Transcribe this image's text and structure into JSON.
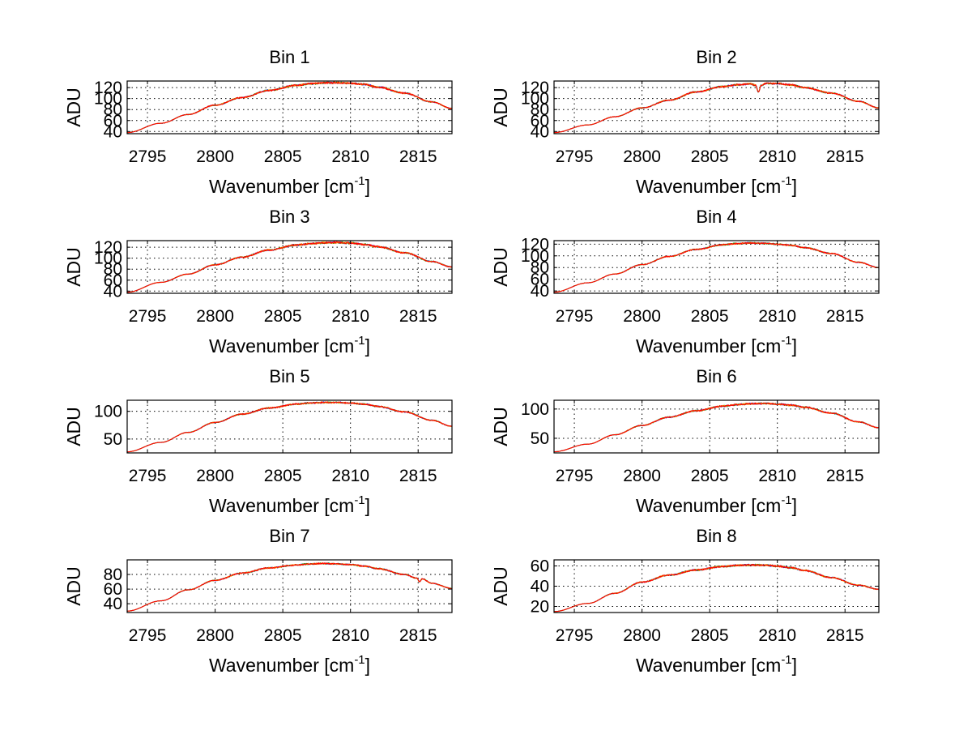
{
  "chart_data": [
    {
      "type": "line",
      "title": "Bin 1",
      "xlabel": "Wavenumber [cm",
      "xlabel_sup": "-1",
      "xlabel_suffix": "]",
      "ylabel": "ADU",
      "xlim": [
        2793.5,
        2817.5
      ],
      "ylim": [
        36,
        132
      ],
      "xticks": [
        2795,
        2800,
        2805,
        2810,
        2815
      ],
      "yticks": [
        40,
        60,
        80,
        100,
        120
      ],
      "grid": true,
      "shape": {
        "x": [
          2793.5,
          2796,
          2798,
          2800,
          2802,
          2804,
          2806,
          2807,
          2808,
          2809,
          2810,
          2811,
          2812,
          2814,
          2816,
          2817.5
        ],
        "y": [
          38,
          55,
          71,
          88,
          102,
          115,
          124,
          127,
          128.5,
          128.8,
          128,
          126,
          121,
          110,
          94,
          82
        ]
      },
      "noise": 1.6,
      "series": [
        {
          "name": "blue",
          "color": "#0000ff"
        },
        {
          "name": "green",
          "color": "#00a000"
        },
        {
          "name": "orange",
          "color": "#ff9900"
        },
        {
          "name": "red",
          "color": "#ff0000"
        }
      ]
    },
    {
      "type": "line",
      "title": "Bin 2",
      "xlabel": "Wavenumber [cm",
      "xlabel_sup": "-1",
      "xlabel_suffix": "]",
      "ylabel": "ADU",
      "xlim": [
        2793.5,
        2817.5
      ],
      "ylim": [
        36,
        132
      ],
      "xticks": [
        2795,
        2800,
        2805,
        2810,
        2815
      ],
      "yticks": [
        40,
        60,
        80,
        100,
        120
      ],
      "grid": true,
      "shape": {
        "x": [
          2793.5,
          2796,
          2798,
          2800,
          2802,
          2804,
          2806,
          2807,
          2808,
          2808.4,
          2808.6,
          2808.8,
          2809.2,
          2810,
          2811,
          2812,
          2814,
          2816,
          2817.5
        ],
        "y": [
          38,
          52,
          67,
          83,
          97,
          112,
          122,
          125,
          127,
          124,
          112,
          124,
          128,
          127.5,
          125,
          120,
          110,
          95,
          83
        ]
      },
      "noise": 1.5,
      "series": [
        {
          "name": "blue",
          "color": "#0000ff"
        },
        {
          "name": "green",
          "color": "#00a000"
        },
        {
          "name": "orange",
          "color": "#ff9900"
        },
        {
          "name": "red",
          "color": "#ff0000"
        }
      ]
    },
    {
      "type": "line",
      "title": "Bin 3",
      "xlabel": "Wavenumber [cm",
      "xlabel_sup": "-1",
      "xlabel_suffix": "]",
      "ylabel": "ADU",
      "xlim": [
        2793.5,
        2817.5
      ],
      "ylim": [
        36,
        132
      ],
      "xticks": [
        2795,
        2800,
        2805,
        2810,
        2815
      ],
      "yticks": [
        40,
        60,
        80,
        100,
        120
      ],
      "grid": true,
      "shape": {
        "x": [
          2793.5,
          2796,
          2798,
          2800,
          2802,
          2804,
          2806,
          2807,
          2808,
          2809,
          2810,
          2811,
          2812,
          2814,
          2816,
          2817.5
        ],
        "y": [
          38,
          56,
          71,
          88,
          102,
          115,
          124,
          126.5,
          128,
          128.5,
          127.5,
          125,
          121,
          110,
          94,
          84
        ]
      },
      "noise": 1.6,
      "series": [
        {
          "name": "blue",
          "color": "#0000ff"
        },
        {
          "name": "green",
          "color": "#00a000"
        },
        {
          "name": "orange",
          "color": "#ff9900"
        },
        {
          "name": "red",
          "color": "#ff0000"
        }
      ]
    },
    {
      "type": "line",
      "title": "Bin 4",
      "xlabel": "Wavenumber [cm",
      "xlabel_sup": "-1",
      "xlabel_suffix": "]",
      "ylabel": "ADU",
      "xlim": [
        2793.5,
        2817.5
      ],
      "ylim": [
        36,
        126
      ],
      "xticks": [
        2795,
        2800,
        2805,
        2810,
        2815
      ],
      "yticks": [
        40,
        60,
        80,
        100,
        120
      ],
      "grid": true,
      "shape": {
        "x": [
          2793.5,
          2796,
          2798,
          2800,
          2802,
          2804,
          2806,
          2807,
          2808,
          2809,
          2810,
          2811,
          2812,
          2814,
          2816,
          2817.5
        ],
        "y": [
          38,
          54,
          69,
          85,
          99,
          111,
          119,
          121,
          122,
          121.5,
          120,
          118,
          114,
          104,
          89,
          80
        ]
      },
      "noise": 1.2,
      "series": [
        {
          "name": "blue",
          "color": "#0000ff"
        },
        {
          "name": "green",
          "color": "#00a000"
        },
        {
          "name": "orange",
          "color": "#ff9900"
        },
        {
          "name": "red",
          "color": "#ff0000"
        }
      ]
    },
    {
      "type": "line",
      "title": "Bin 5",
      "xlabel": "Wavenumber [cm",
      "xlabel_sup": "-1",
      "xlabel_suffix": "]",
      "ylabel": "ADU",
      "xlim": [
        2793.5,
        2817.5
      ],
      "ylim": [
        25,
        120
      ],
      "xticks": [
        2795,
        2800,
        2805,
        2810,
        2815
      ],
      "yticks": [
        50,
        100
      ],
      "grid": true,
      "shape": {
        "x": [
          2793.5,
          2796,
          2798,
          2800,
          2802,
          2804,
          2806,
          2807,
          2808,
          2809,
          2810,
          2811,
          2812,
          2814,
          2816,
          2817.5
        ],
        "y": [
          27,
          44,
          62,
          80,
          95,
          106,
          113,
          115,
          116,
          116,
          115,
          113,
          109,
          99,
          84,
          73
        ]
      },
      "noise": 1.3,
      "series": [
        {
          "name": "blue",
          "color": "#0000ff"
        },
        {
          "name": "green",
          "color": "#00a000"
        },
        {
          "name": "orange",
          "color": "#ff9900"
        },
        {
          "name": "red",
          "color": "#ff0000"
        }
      ]
    },
    {
      "type": "line",
      "title": "Bin 6",
      "xlabel": "Wavenumber [cm",
      "xlabel_sup": "-1",
      "xlabel_suffix": "]",
      "ylabel": "ADU",
      "xlim": [
        2793.5,
        2817.5
      ],
      "ylim": [
        25,
        115
      ],
      "xticks": [
        2795,
        2800,
        2805,
        2810,
        2815
      ],
      "yticks": [
        50,
        100
      ],
      "grid": true,
      "shape": {
        "x": [
          2793.5,
          2796,
          2798,
          2800,
          2802,
          2804,
          2806,
          2807,
          2808,
          2809,
          2810,
          2811,
          2812,
          2814,
          2816,
          2817.5
        ],
        "y": [
          27,
          40,
          56,
          72,
          86,
          97,
          105,
          107.5,
          109,
          109.5,
          108.5,
          106.5,
          103,
          93,
          78,
          68
        ]
      },
      "noise": 1.4,
      "series": [
        {
          "name": "blue",
          "color": "#0000ff"
        },
        {
          "name": "green",
          "color": "#00a000"
        },
        {
          "name": "orange",
          "color": "#ff9900"
        },
        {
          "name": "red",
          "color": "#ff0000"
        }
      ]
    },
    {
      "type": "line",
      "title": "Bin 7",
      "xlabel": "Wavenumber [cm",
      "xlabel_sup": "-1",
      "xlabel_suffix": "]",
      "ylabel": "ADU",
      "xlim": [
        2793.5,
        2817.5
      ],
      "ylim": [
        28,
        100
      ],
      "xticks": [
        2795,
        2800,
        2805,
        2810,
        2815
      ],
      "yticks": [
        40,
        60,
        80
      ],
      "grid": true,
      "shape": {
        "x": [
          2793.5,
          2796,
          2798,
          2800,
          2802,
          2804,
          2806,
          2807,
          2808,
          2809,
          2810,
          2811,
          2812,
          2814,
          2814.9,
          2815.1,
          2815.3,
          2816,
          2817.5
        ],
        "y": [
          30,
          44,
          59,
          72,
          82,
          89,
          93,
          94.5,
          95,
          94.5,
          93.5,
          91.5,
          88,
          80,
          75,
          70,
          74,
          68,
          61
        ]
      },
      "noise": 1.0,
      "series": [
        {
          "name": "blue",
          "color": "#0000ff"
        },
        {
          "name": "green",
          "color": "#00a000"
        },
        {
          "name": "orange",
          "color": "#ff9900"
        },
        {
          "name": "red",
          "color": "#ff0000"
        }
      ]
    },
    {
      "type": "line",
      "title": "Bin 8",
      "xlabel": "Wavenumber [cm",
      "xlabel_sup": "-1",
      "xlabel_suffix": "]",
      "ylabel": "ADU",
      "xlim": [
        2793.5,
        2817.5
      ],
      "ylim": [
        14,
        66
      ],
      "xticks": [
        2795,
        2800,
        2805,
        2810,
        2815
      ],
      "yticks": [
        20,
        40,
        60
      ],
      "grid": true,
      "shape": {
        "x": [
          2793.5,
          2796,
          2798,
          2800,
          2802,
          2804,
          2806,
          2807,
          2808,
          2809,
          2810,
          2811,
          2812,
          2814,
          2816,
          2817.5
        ],
        "y": [
          15,
          23,
          33,
          44,
          51,
          56,
          59.5,
          60.5,
          61,
          60.8,
          59.8,
          58.2,
          55.5,
          48.5,
          41,
          37
        ]
      },
      "noise": 0.9,
      "series": [
        {
          "name": "blue",
          "color": "#0000ff"
        },
        {
          "name": "green",
          "color": "#00a000"
        },
        {
          "name": "orange",
          "color": "#ff9900"
        },
        {
          "name": "red",
          "color": "#ff0000"
        }
      ]
    }
  ]
}
